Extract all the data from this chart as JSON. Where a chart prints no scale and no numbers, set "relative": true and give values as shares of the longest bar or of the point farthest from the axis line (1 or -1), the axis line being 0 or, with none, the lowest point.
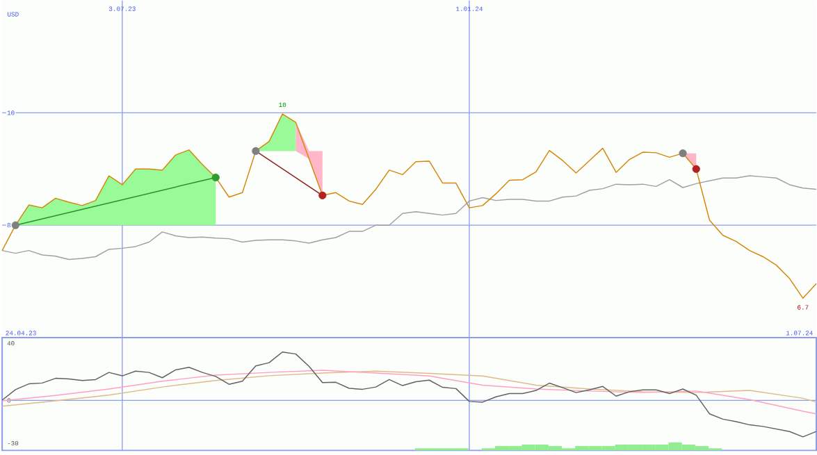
{
  "chart_data": [
    {
      "type": "line",
      "ylabel": "USD",
      "xlim": [
        "2023-05-01",
        "2024-07-01"
      ],
      "ylim": [
        6,
        12
      ],
      "yticks": [
        8,
        10
      ],
      "grid": true,
      "xticks": [
        {
          "value": "2023-07-03",
          "label": "3.07.23"
        },
        {
          "value": "2024-01-01",
          "label": "1.01.24"
        }
      ],
      "x": [
        "2023-05-01",
        "2023-05-08",
        "2023-05-15",
        "2023-05-22",
        "2023-05-29",
        "2023-06-05",
        "2023-06-12",
        "2023-06-19",
        "2023-06-26",
        "2023-07-03",
        "2023-07-10",
        "2023-07-17",
        "2023-07-24",
        "2023-07-31",
        "2023-08-07",
        "2023-08-14",
        "2023-08-21",
        "2023-08-28",
        "2023-09-04",
        "2023-09-11",
        "2023-09-18",
        "2023-09-25",
        "2023-10-02",
        "2023-10-09",
        "2023-10-16",
        "2023-10-23",
        "2023-10-30",
        "2023-11-06",
        "2023-11-13",
        "2023-11-20",
        "2023-11-27",
        "2023-12-04",
        "2023-12-11",
        "2023-12-18",
        "2023-12-25",
        "2024-01-01",
        "2024-01-08",
        "2024-01-15",
        "2024-01-22",
        "2024-01-29",
        "2024-02-05",
        "2024-02-12",
        "2024-02-19",
        "2024-02-26",
        "2024-03-04",
        "2024-03-11",
        "2024-03-18",
        "2024-03-25",
        "2024-04-01",
        "2024-04-08",
        "2024-04-15",
        "2024-04-22",
        "2024-04-29",
        "2024-05-06",
        "2024-05-13",
        "2024-05-20",
        "2024-05-27",
        "2024-06-03",
        "2024-06-10",
        "2024-06-17",
        "2024-06-24",
        "2024-07-01"
      ],
      "series": [
        {
          "color": "#98fb98",
          "x": [
            "2023-05-08",
            "2023-05-15",
            "2023-05-22",
            "2023-05-29",
            "2023-06-05",
            "2023-06-12",
            "2023-06-19",
            "2023-06-26",
            "2023-07-03",
            "2023-07-10",
            "2023-07-17",
            "2023-07-24",
            "2023-07-31",
            "2023-08-07",
            "2023-08-14",
            "2023-08-21"
          ],
          "values": [
            null,
            null,
            null,
            null,
            null,
            null,
            null,
            null,
            null,
            null,
            null,
            null,
            null,
            null,
            null,
            null
          ],
          "lower": [
            8,
            8,
            8,
            8,
            8,
            8,
            8,
            8,
            8,
            8,
            8,
            8,
            8,
            8,
            8,
            8
          ],
          "upper": [
            8.0,
            8.36,
            8.31,
            8.48,
            8.41,
            8.35,
            8.44,
            8.88,
            8.72,
            9.0,
            9.0,
            8.98,
            9.25,
            9.34,
            9.08,
            8.85
          ]
        },
        {
          "color": "#98fb98",
          "x": [
            "2023-09-11",
            "2023-09-18",
            "2023-09-25",
            "2023-10-02"
          ],
          "values": [
            null,
            null,
            null,
            null
          ],
          "lower": [
            9.32,
            9.32,
            9.32,
            9.32
          ],
          "upper": [
            9.32,
            9.49,
            9.98,
            9.83
          ]
        },
        {
          "color": "#ffb6c8",
          "x": [
            "2023-10-02",
            "2023-10-09",
            "2023-10-16"
          ],
          "values": [
            null,
            null,
            null
          ],
          "lower": [
            9.32,
            9.18,
            8.53
          ],
          "upper": [
            9.83,
            9.32,
            9.32
          ]
        },
        {
          "color": "#ffb6c8",
          "x": [
            "2024-04-22",
            "2024-04-29"
          ],
          "values": [
            null,
            null
          ],
          "lower": [
            9.28,
            9.0
          ],
          "upper": [
            9.28,
            9.28
          ]
        },
        {
          "color": "#a0a0a0",
          "values": [
            7.55,
            7.5,
            7.55,
            7.47,
            7.45,
            7.39,
            7.41,
            7.44,
            7.57,
            7.59,
            7.62,
            7.7,
            7.88,
            7.81,
            7.78,
            7.79,
            7.77,
            7.76,
            7.7,
            7.73,
            7.74,
            7.74,
            7.72,
            7.68,
            7.74,
            7.78,
            7.89,
            7.89,
            8.0,
            8.0,
            8.21,
            8.24,
            8.21,
            8.18,
            8.21,
            8.43,
            8.49,
            8.44,
            8.46,
            8.46,
            8.43,
            8.43,
            8.5,
            8.52,
            8.62,
            8.65,
            8.73,
            8.72,
            8.73,
            8.69,
            8.81,
            8.67,
            8.74,
            8.79,
            8.84,
            8.84,
            8.88,
            8.86,
            8.84,
            8.72,
            8.66,
            8.64
          ]
        },
        {
          "color": "#d4880a",
          "values": [
            7.55,
            8.0,
            8.36,
            8.31,
            8.48,
            8.41,
            8.35,
            8.44,
            8.88,
            8.72,
            9.0,
            9.0,
            8.98,
            9.25,
            9.34,
            9.08,
            8.85,
            8.5,
            8.58,
            9.32,
            9.49,
            9.98,
            9.83,
            9.18,
            8.53,
            8.58,
            8.43,
            8.37,
            8.64,
            8.98,
            8.9,
            9.13,
            9.14,
            8.75,
            8.75,
            8.31,
            8.35,
            8.56,
            8.8,
            8.81,
            8.95,
            9.33,
            9.15,
            8.93,
            9.15,
            9.37,
            8.94,
            9.17,
            9.3,
            9.29,
            9.21,
            9.28,
            9.0,
            8.09,
            7.82,
            7.71,
            7.55,
            7.44,
            7.29,
            7.05,
            6.7,
            6.96
          ]
        },
        {
          "color": "#2e8b2e",
          "marker": "circle",
          "x": [
            "2023-05-08",
            "2023-08-21"
          ],
          "values": [
            8.0,
            8.85
          ],
          "colors": [
            "#808080",
            "#2e9b2e"
          ]
        },
        {
          "color": "#8b1a1a",
          "marker": "circle",
          "x": [
            "2023-09-11",
            "2023-10-16"
          ],
          "values": [
            9.32,
            8.53
          ],
          "colors": [
            "#808080",
            "#b22222"
          ]
        },
        {
          "type": "scatter",
          "marker": "circle",
          "x": [
            "2024-04-22",
            "2024-04-29"
          ],
          "values": [
            9.28,
            9.0
          ],
          "colors": [
            "#808080",
            "#b22222"
          ]
        }
      ],
      "annotations": [
        "24.04.23",
        {
          "text": "10",
          "x": "2023-09-25",
          "y": 9.98
        },
        {
          "text": "6.7",
          "x": "2024-06-24",
          "y": 6.7
        },
        "1.07.24"
      ]
    },
    {
      "type": "line",
      "xlim": [
        "2023-05-01",
        "2024-07-01"
      ],
      "ylim": [
        -35,
        44
      ],
      "yticks": [
        40,
        0,
        -30
      ],
      "grid": "x",
      "tick_labels": "y",
      "xticks": [
        {
          "value": "2023-07-03",
          "label": null
        },
        {
          "value": "2024-01-01",
          "label": null
        }
      ],
      "ref_lines": [
        {
          "axis": "y",
          "value": 0
        }
      ],
      "x": [
        "2023-05-01",
        "2023-05-08",
        "2023-05-15",
        "2023-05-22",
        "2023-05-29",
        "2023-06-05",
        "2023-06-12",
        "2023-06-19",
        "2023-06-26",
        "2023-07-03",
        "2023-07-10",
        "2023-07-17",
        "2023-07-24",
        "2023-07-31",
        "2023-08-07",
        "2023-08-14",
        "2023-08-21",
        "2023-08-28",
        "2023-09-04",
        "2023-09-11",
        "2023-09-18",
        "2023-09-25",
        "2023-10-02",
        "2023-10-09",
        "2023-10-16",
        "2023-10-23",
        "2023-10-30",
        "2023-11-06",
        "2023-11-13",
        "2023-11-20",
        "2023-11-27",
        "2023-12-04",
        "2023-12-11",
        "2023-12-18",
        "2023-12-25",
        "2024-01-01",
        "2024-01-08",
        "2024-01-15",
        "2024-01-22",
        "2024-01-29",
        "2024-02-05",
        "2024-02-12",
        "2024-02-19",
        "2024-02-26",
        "2024-03-04",
        "2024-03-11",
        "2024-03-18",
        "2024-03-25",
        "2024-04-01",
        "2024-04-08",
        "2024-04-15",
        "2024-04-22",
        "2024-04-29",
        "2024-05-06",
        "2024-05-13",
        "2024-05-20",
        "2024-05-27",
        "2024-06-03",
        "2024-06-10",
        "2024-06-17",
        "2024-06-24",
        "2024-07-01"
      ],
      "series": [
        {
          "color": "#ddbb88",
          "x": [
            "2023-05-01",
            "2023-05-29",
            "2023-06-26",
            "2023-07-24",
            "2023-08-21",
            "2023-09-18",
            "2023-10-16",
            "2023-11-13",
            "2023-12-11",
            "2024-01-08",
            "2024-02-05",
            "2024-03-04",
            "2024-04-01",
            "2024-04-29",
            "2024-05-27",
            "2024-06-24",
            "2024-07-01"
          ],
          "values": [
            -4.0,
            -0.3,
            3.7,
            9.4,
            14.0,
            17.3,
            19.2,
            20.5,
            18.9,
            17.1,
            10.7,
            8.0,
            6.1,
            5.5,
            7.0,
            1.5,
            -1.2
          ]
        },
        {
          "color": "#ffa0c0",
          "x": [
            "2023-05-01",
            "2023-05-29",
            "2023-06-26",
            "2023-07-24",
            "2023-08-21",
            "2023-09-18",
            "2023-10-16",
            "2023-11-13",
            "2023-12-11",
            "2024-01-08",
            "2024-02-05",
            "2024-03-04",
            "2024-04-01",
            "2024-04-29",
            "2024-05-27",
            "2024-06-24",
            "2024-07-01"
          ],
          "values": [
            -0.3,
            3.5,
            8.0,
            13.5,
            17.7,
            19.6,
            21.1,
            19.2,
            17.1,
            10.7,
            8.0,
            6.6,
            5.5,
            6.6,
            0.6,
            -7.6,
            -9.4
          ]
        },
        {
          "color": "#606060",
          "values": [
            0.2,
            7.6,
            11.6,
            12.2,
            15.5,
            15,
            14,
            14.6,
            19.6,
            17.2,
            20.5,
            19.6,
            15.9,
            21.4,
            23.2,
            19.6,
            16.8,
            11.3,
            13.5,
            24.2,
            26.4,
            33.9,
            32.5,
            23.8,
            12.5,
            12.7,
            8.5,
            7.8,
            9.4,
            14.6,
            10.4,
            13.1,
            14.2,
            9.2,
            8.3,
            -0.7,
            -1.2,
            2.5,
            4.8,
            4.8,
            7,
            12.1,
            8.9,
            5.5,
            7.4,
            9.8,
            3,
            6.1,
            7.4,
            7.4,
            4.8,
            8,
            3.7,
            -9.4,
            -13.1,
            -14.9,
            -17.1,
            -18.2,
            -20,
            -21.8,
            -25.5,
            -21.7
          ]
        }
      ]
    },
    {
      "type": "bar",
      "relative": true,
      "xlim": [
        "2023-05-01",
        "2024-07-01"
      ],
      "color": "#90ee90",
      "x": [
        "2023-12-07",
        "2023-12-14",
        "2023-12-21",
        "2023-12-28",
        "2024-01-11",
        "2024-01-18",
        "2024-01-25",
        "2024-02-01",
        "2024-02-08",
        "2024-02-15",
        "2024-02-22",
        "2024-02-29",
        "2024-03-07",
        "2024-03-14",
        "2024-03-21",
        "2024-03-28",
        "2024-04-04",
        "2024-04-11",
        "2024-04-18",
        "2024-04-25",
        "2024-05-02",
        "2024-05-09"
      ],
      "values": [
        0.27,
        0.27,
        0.27,
        0.27,
        0.27,
        0.55,
        0.55,
        0.73,
        0.73,
        0.55,
        0.27,
        0.55,
        0.55,
        0.55,
        0.73,
        0.73,
        0.73,
        0.73,
        1,
        0.73,
        0.55,
        0.27
      ]
    }
  ]
}
